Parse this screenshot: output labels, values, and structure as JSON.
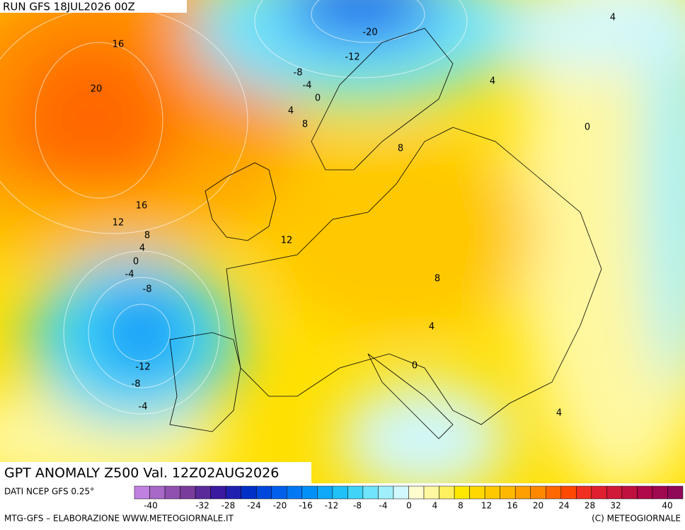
{
  "header": {
    "run": "RUN GFS 18JUL2026 00Z"
  },
  "map": {
    "title": "GPT ANOMALY Z500 Val. 12Z02AUG2026",
    "contour_labels": [
      16,
      20,
      -20,
      -12,
      -8,
      -4,
      0,
      4,
      8,
      4,
      4,
      0,
      8,
      16,
      12,
      8,
      4,
      0,
      -4,
      -8,
      12,
      8,
      4,
      0,
      4,
      -12,
      -8,
      -4
    ]
  },
  "colorbar": {
    "source": "DATI NCEP GFS 0.25°",
    "labels": [
      -40,
      -32,
      -28,
      -24,
      -20,
      -16,
      -12,
      -8,
      -4,
      0,
      4,
      8,
      12,
      16,
      20,
      24,
      28,
      32,
      40
    ],
    "colors": [
      "#c080e0",
      "#a868c8",
      "#9050b0",
      "#7a3c9c",
      "#5a2a9a",
      "#3a1aa0",
      "#2020b0",
      "#0030c8",
      "#0048dc",
      "#0060ec",
      "#0078f4",
      "#0090f8",
      "#10a8f8",
      "#20c0f8",
      "#40d4f8",
      "#70e4fa",
      "#a0f0fc",
      "#d0f8fe",
      "#fffcd0",
      "#fff8a0",
      "#fff060",
      "#ffe800",
      "#ffd800",
      "#ffc800",
      "#ffb800",
      "#ffa000",
      "#ff8800",
      "#ff6800",
      "#ff4800",
      "#f03020",
      "#e02030",
      "#d01838",
      "#c01040",
      "#b00848",
      "#a00850",
      "#900858"
    ]
  },
  "footer": {
    "credit": "MTG-GFS – ELABORAZIONE WWW.METEOGIORNALE.IT",
    "copyright": "(C) METEOGIORNALE"
  }
}
